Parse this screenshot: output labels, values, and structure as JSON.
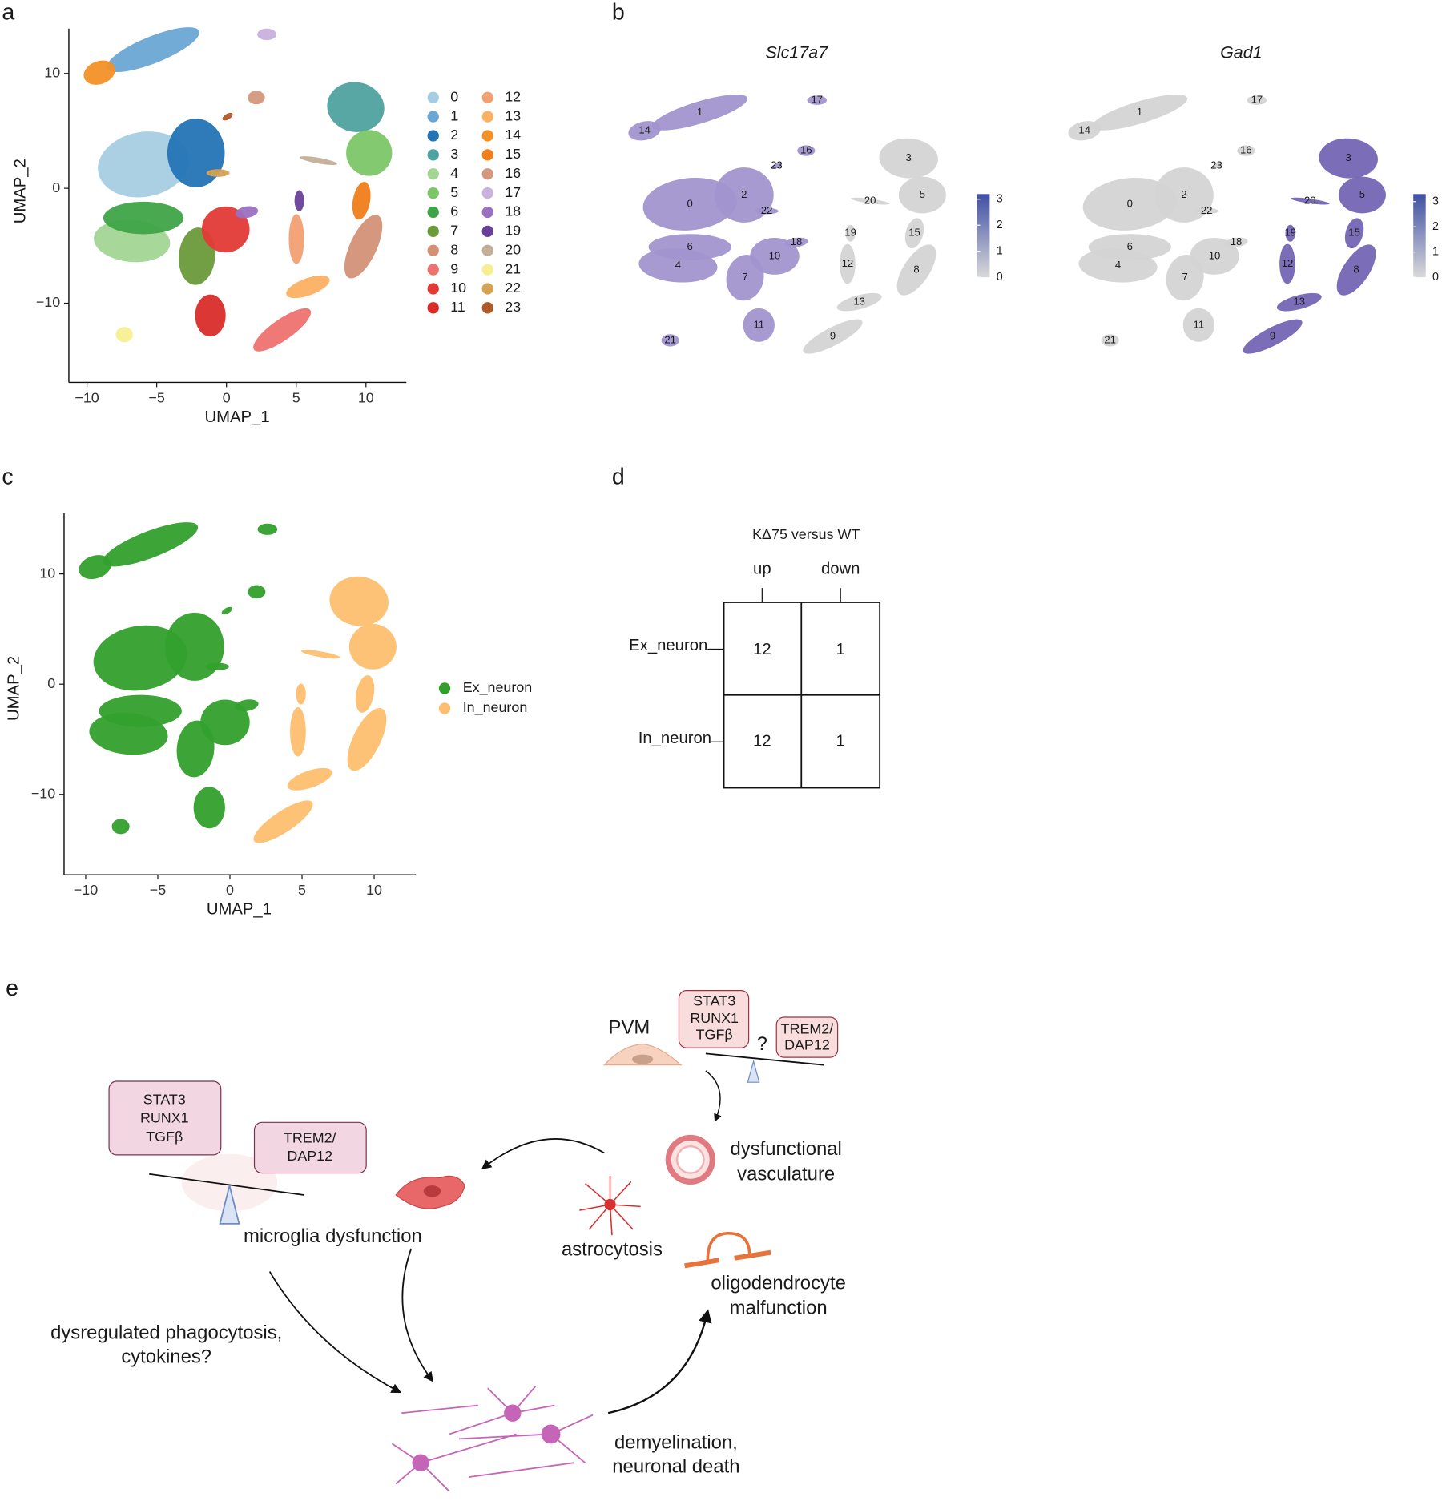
{
  "panels": {
    "a": {
      "label": "a",
      "x_label": "UMAP_1",
      "y_label": "UMAP_2",
      "xlim": [
        -11.3,
        12.9
      ],
      "ylim": [
        -16.9,
        13.9
      ],
      "xticks": [
        {
          "value": -10,
          "label": "−10"
        },
        {
          "value": -5,
          "label": "−5"
        },
        0,
        5,
        10
      ],
      "yticks": [
        {
          "value": -10,
          "label": "−10"
        },
        0,
        10
      ],
      "legend": [
        {
          "name": "0",
          "color": "#a6cde3"
        },
        {
          "name": "1",
          "color": "#6aa7d4"
        },
        {
          "name": "2",
          "color": "#2474b5"
        },
        {
          "name": "3",
          "color": "#4fa2a0"
        },
        {
          "name": "4",
          "color": "#a3d595"
        },
        {
          "name": "5",
          "color": "#7cc668"
        },
        {
          "name": "6",
          "color": "#3fa447"
        },
        {
          "name": "7",
          "color": "#6b9a3a"
        },
        {
          "name": "8",
          "color": "#d39176"
        },
        {
          "name": "9",
          "color": "#ee7270"
        },
        {
          "name": "10",
          "color": "#e23a36"
        },
        {
          "name": "11",
          "color": "#d82c2a"
        },
        {
          "name": "12",
          "color": "#f2a072"
        },
        {
          "name": "13",
          "color": "#fbb062"
        },
        {
          "name": "14",
          "color": "#f39026"
        },
        {
          "name": "15",
          "color": "#f07e1a"
        },
        {
          "name": "16",
          "color": "#d3987c"
        },
        {
          "name": "17",
          "color": "#c8b1dc"
        },
        {
          "name": "18",
          "color": "#9a70c0"
        },
        {
          "name": "19",
          "color": "#6a4199"
        },
        {
          "name": "20",
          "color": "#c3ae98"
        },
        {
          "name": "21",
          "color": "#f6ef92"
        },
        {
          "name": "22",
          "color": "#d3a253"
        },
        {
          "name": "23",
          "color": "#b05a28"
        }
      ]
    },
    "b": {
      "label": "b",
      "plots": [
        {
          "title": "Slc17a7",
          "colorbar": {
            "lim": [
              0,
              3.2
            ],
            "ticks": [
              0,
              1,
              2,
              3
            ]
          }
        },
        {
          "title": "Gad1",
          "colorbar": {
            "lim": [
              0,
              3.3
            ],
            "ticks": [
              0,
              1,
              2,
              3
            ]
          }
        }
      ]
    },
    "c": {
      "label": "c",
      "x_label": "UMAP_1",
      "y_label": "UMAP_2",
      "xlim": [
        -11.5,
        12.9
      ],
      "ylim": [
        -17.3,
        15.5
      ],
      "xticks": [
        {
          "value": -10,
          "label": "−10"
        },
        {
          "value": -5,
          "label": "−5"
        },
        0,
        5,
        10
      ],
      "yticks": [
        {
          "value": -10,
          "label": "−10"
        },
        0,
        10
      ],
      "legend": [
        {
          "name": "Ex_neuron",
          "color": "#33a02c"
        },
        {
          "name": "In_neuron",
          "color": "#fdbf6f"
        }
      ]
    },
    "d": {
      "label": "d",
      "header": "KΔ75 versus WT",
      "columns": [
        "up",
        "down"
      ],
      "rows": [
        {
          "name": "Ex_neuron",
          "values": [
            12,
            1
          ]
        },
        {
          "name": "In_neuron",
          "values": [
            12,
            1
          ]
        }
      ]
    },
    "e": {
      "label": "e",
      "pvm": "PVM",
      "box_pvm_left": [
        "STAT3",
        "RUNX1",
        "TGFβ"
      ],
      "question": "?",
      "box_pvm_right": [
        "TREM2/",
        "DAP12"
      ],
      "box_microglia_left": [
        "STAT3",
        "RUNX1",
        "TGFβ"
      ],
      "box_microglia_right": [
        "TREM2/",
        "DAP12"
      ],
      "vasculature": [
        "dysfunctional",
        "vasculature"
      ],
      "microglia": "microglia dysfunction",
      "astrocytosis": "astrocytosis",
      "oligodendrocyte": [
        "oligodendrocyte",
        "malfunction"
      ],
      "phagocytosis": [
        "dysregulated phagocytosis,",
        "cytokines?"
      ],
      "demyelination": [
        "demyelination,",
        "neuronal death"
      ]
    }
  }
}
